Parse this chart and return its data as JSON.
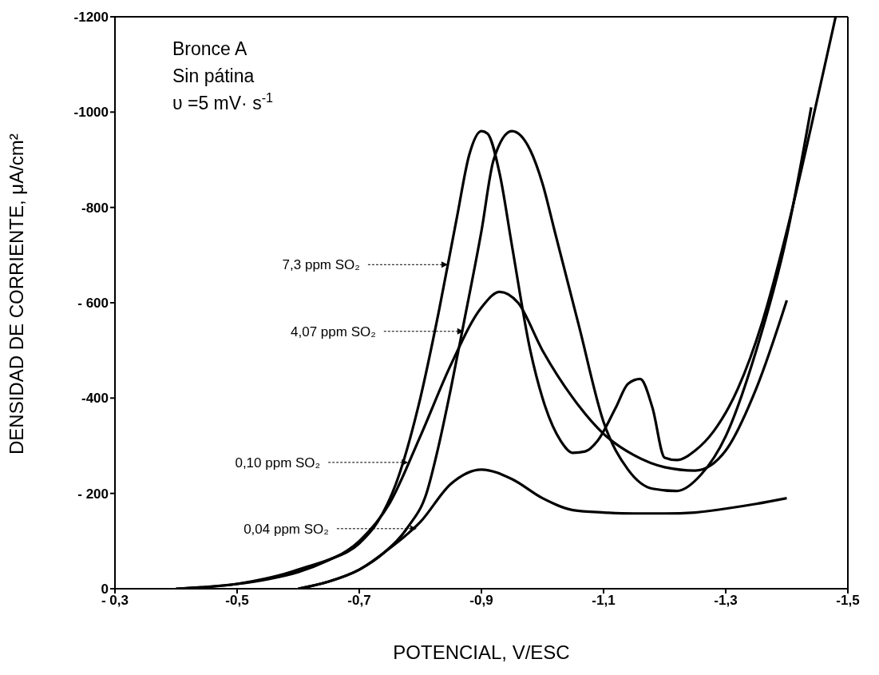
{
  "chart_data": {
    "type": "line",
    "xlabel": "POTENCIAL, V/ESC",
    "ylabel": "DENSIDAD DE CORRIENTE, μA/cm²",
    "xlim": [
      -0.3,
      -1.5
    ],
    "ylim": [
      0,
      -1200
    ],
    "xticks": [
      {
        "value": -0.3,
        "label": "- 0,3"
      },
      {
        "value": -0.5,
        "label": "-0,5"
      },
      {
        "value": -0.7,
        "label": "-0,7"
      },
      {
        "value": -0.9,
        "label": "-0,9"
      },
      {
        "value": -1.1,
        "label": "-1,1"
      },
      {
        "value": -1.3,
        "label": "-1,3"
      },
      {
        "value": -1.5,
        "label": "-1,5"
      }
    ],
    "yticks": [
      0,
      {
        "value": -200,
        "label": "- 200"
      },
      {
        "value": -400,
        "label": "-400"
      },
      {
        "value": -600,
        "label": "- 600"
      },
      {
        "value": -800,
        "label": "-800"
      },
      {
        "value": -1000,
        "label": "-1000"
      },
      {
        "value": -1200,
        "label": "-1200"
      }
    ],
    "legend": false,
    "marker": "none",
    "line_style": "solid",
    "annotations": [
      "Bronce A",
      "Sin pátina",
      "υ =5 mV· s$^{-1}$",
      {
        "text": "7,3 ppm SO₂",
        "x": -0.845,
        "y": -680
      },
      {
        "text": "4,07 ppm SO₂",
        "x": -0.871,
        "y": -540
      },
      {
        "text": "0,10 ppm SO₂",
        "x": -0.78,
        "y": -265
      },
      {
        "text": "0,04 ppm SO₂",
        "x": -0.794,
        "y": -126
      }
    ],
    "series": [
      {
        "color": "#000000",
        "x": [
          -0.4,
          -0.5,
          -0.55,
          -0.6,
          -0.65,
          -0.7,
          -0.73,
          -0.76,
          -0.8,
          -0.83,
          -0.86,
          -0.88,
          -0.9,
          -0.91,
          -0.93,
          -0.95,
          -0.98,
          -1.0,
          -1.03,
          -1.05,
          -1.07,
          -1.09,
          -1.12,
          -1.14,
          -1.16,
          -1.18,
          -1.2,
          -1.22,
          -1.25,
          -1.28,
          -1.32,
          -1.36,
          -1.4,
          -1.44,
          -1.48
        ],
        "values": [
          0,
          -10,
          -20,
          -35,
          -60,
          -95,
          -140,
          -220,
          -400,
          -580,
          -780,
          -910,
          -960,
          -955,
          -870,
          -720,
          -500,
          -400,
          -310,
          -285,
          -288,
          -310,
          -380,
          -430,
          -440,
          -380,
          -275,
          -270,
          -290,
          -330,
          -420,
          -560,
          -750,
          -970,
          -1200
        ]
      },
      {
        "color": "#000000",
        "x": [
          -0.6,
          -0.65,
          -0.7,
          -0.74,
          -0.78,
          -0.81,
          -0.83,
          -0.85,
          -0.87,
          -0.9,
          -0.92,
          -0.95,
          -0.98,
          -1.0,
          -1.02,
          -1.06,
          -1.1,
          -1.14,
          -1.18,
          -1.22,
          -1.26,
          -1.3,
          -1.35,
          -1.4,
          -1.44
        ],
        "values": [
          0,
          -15,
          -40,
          -75,
          -130,
          -200,
          -300,
          -420,
          -550,
          -750,
          -900,
          -960,
          -920,
          -850,
          -750,
          -550,
          -350,
          -250,
          -210,
          -205,
          -240,
          -320,
          -500,
          -740,
          -1010
        ]
      },
      {
        "color": "#000000",
        "x": [
          -0.4,
          -0.5,
          -0.6,
          -0.7,
          -0.75,
          -0.8,
          -0.85,
          -0.9,
          -0.93,
          -0.96,
          -1.0,
          -1.05,
          -1.1,
          -1.15,
          -1.2,
          -1.25,
          -1.3,
          -1.35,
          -1.4
        ],
        "values": [
          0,
          -10,
          -40,
          -100,
          -180,
          -320,
          -470,
          -590,
          -623,
          -600,
          -500,
          -400,
          -325,
          -280,
          -255,
          -248,
          -290,
          -420,
          -605
        ]
      },
      {
        "color": "#000000",
        "x": [
          -0.6,
          -0.65,
          -0.7,
          -0.75,
          -0.8,
          -0.85,
          -0.9,
          -0.95,
          -1.0,
          -1.05,
          -1.1,
          -1.15,
          -1.2,
          -1.25,
          -1.3,
          -1.35,
          -1.4
        ],
        "values": [
          0,
          -15,
          -40,
          -85,
          -140,
          -220,
          -250,
          -230,
          -190,
          -165,
          -160,
          -158,
          -158,
          -160,
          -168,
          -178,
          -190
        ]
      }
    ]
  }
}
